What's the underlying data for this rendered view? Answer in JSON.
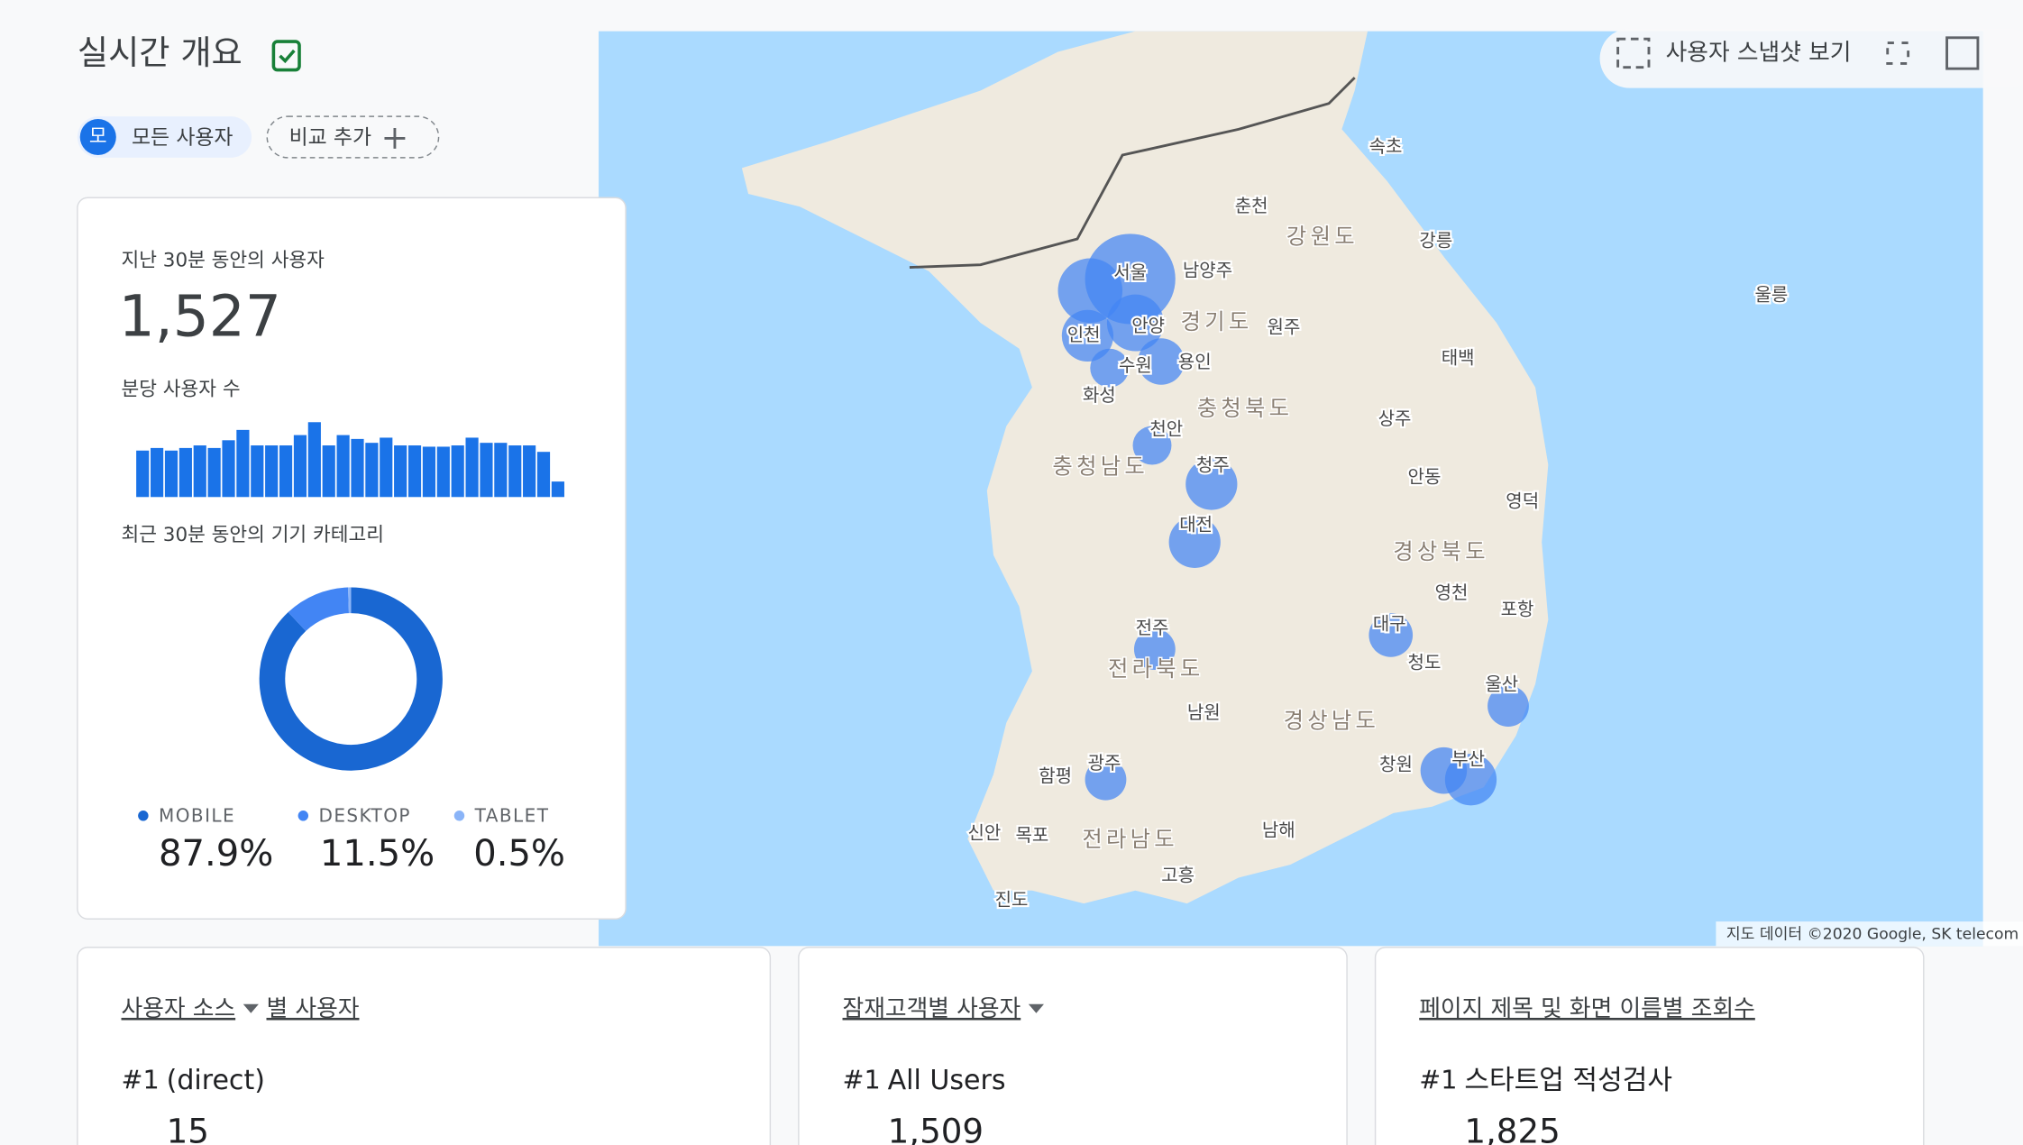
{
  "header": {
    "title": "실시간 개요",
    "segment_avatar": "모",
    "segment_chip": "모든 사용자",
    "compare_button": "비교 추가"
  },
  "users_card": {
    "label": "지난 30분 동안의 사용자",
    "total": "1,527",
    "per_minute_label": "분당 사용자 수",
    "per_minute": [
      36,
      38,
      36,
      38,
      40,
      38,
      44,
      52,
      40,
      40,
      40,
      48,
      58,
      40,
      48,
      45,
      42,
      46,
      40,
      40,
      39,
      39,
      40,
      46,
      42,
      42,
      40,
      40,
      35,
      12
    ],
    "device_label": "최근 30분 동안의 기기 카테고리",
    "devices": [
      {
        "name": "MOBILE",
        "value": 87.9,
        "label": "87.9%",
        "color": "#1967d2"
      },
      {
        "name": "DESKTOP",
        "value": 11.5,
        "label": "11.5%",
        "color": "#4285f4"
      },
      {
        "name": "TABLET",
        "value": 0.5,
        "label": "0.5%",
        "color": "#8ab4f8"
      }
    ]
  },
  "map": {
    "snapshot_button": "사용자 스냅샷 보기",
    "attribution": "지도 데이터 ©2020 Google, SK telecom",
    "labels": [
      "속초",
      "춘천",
      "강원도",
      "강릉",
      "서울",
      "남양주",
      "울릉",
      "인천",
      "안양",
      "경기도",
      "원주",
      "용인",
      "수원",
      "태백",
      "화성",
      "천안",
      "충청북도",
      "상주",
      "충청남도",
      "청주",
      "안동",
      "영덕",
      "대전",
      "경상북도",
      "영천",
      "포항",
      "대구",
      "전주",
      "청도",
      "전라북도",
      "울산",
      "남원",
      "경상남도",
      "광주",
      "창원",
      "함평",
      "부산",
      "신안",
      "목포",
      "전라남도",
      "남해",
      "고흥",
      "진도"
    ]
  },
  "cards": [
    {
      "title": "사용자 소스",
      "title_suffix": "별 사용자",
      "rank": "#1",
      "top_item": "(direct)",
      "top_value": "15"
    },
    {
      "title": "잠재고객별 사용자",
      "rank": "#1",
      "top_item": "All Users",
      "top_value": "1,509"
    },
    {
      "title": "페이지 제목 및 화면 이름별 조회수",
      "rank": "#1",
      "top_item": "스타트업 적성검사",
      "top_value": "1,825"
    }
  ]
}
